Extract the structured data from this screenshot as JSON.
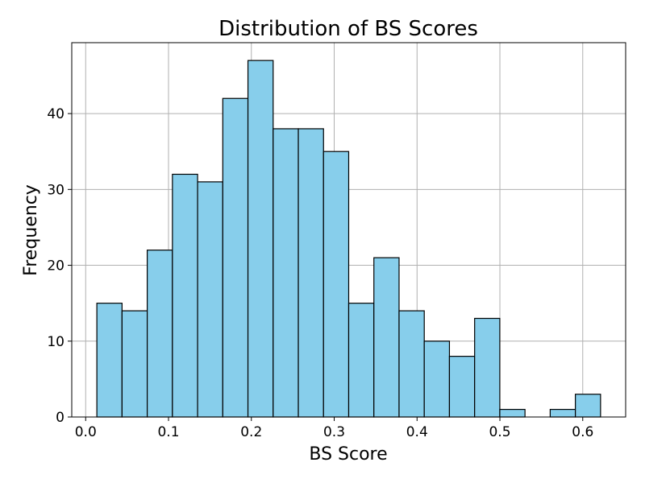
{
  "chart_data": {
    "type": "bar",
    "title": "Distribution of BS Scores",
    "xlabel": "BS Score",
    "ylabel": "Frequency",
    "bin_edges": [
      0.0135,
      0.0439,
      0.0743,
      0.1047,
      0.1351,
      0.1655,
      0.1959,
      0.2263,
      0.2567,
      0.2871,
      0.3175,
      0.3479,
      0.3783,
      0.4087,
      0.4391,
      0.4695,
      0.4999,
      0.5303,
      0.5607,
      0.5911,
      0.6215
    ],
    "values": [
      15,
      14,
      22,
      32,
      31,
      42,
      47,
      38,
      38,
      35,
      15,
      21,
      14,
      10,
      8,
      13,
      1,
      0,
      1,
      3
    ],
    "xlim": [
      -0.0168,
      0.6518
    ],
    "ylim": [
      0,
      49.35
    ],
    "xticks": [
      0.0,
      0.1,
      0.2,
      0.3,
      0.4,
      0.5,
      0.6
    ],
    "xtick_labels": [
      "0.0",
      "0.1",
      "0.2",
      "0.3",
      "0.4",
      "0.5",
      "0.6"
    ],
    "yticks": [
      0,
      10,
      20,
      30,
      40
    ],
    "ytick_labels": [
      "0",
      "10",
      "20",
      "30",
      "40"
    ],
    "grid": true,
    "bar_color": "#87CEEB",
    "edge_color": "#000000"
  }
}
